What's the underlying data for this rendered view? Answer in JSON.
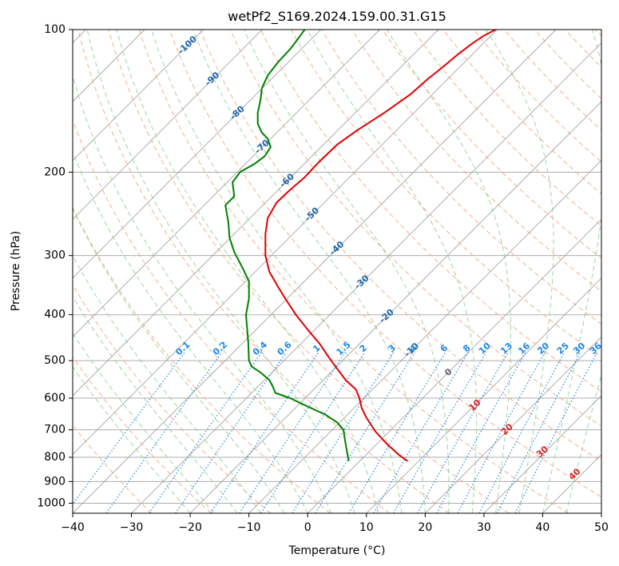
{
  "chart_data": {
    "type": "line",
    "title": "wetPf2_S169.2024.159.00.31.G15",
    "xlabel": "Temperature (°C)",
    "ylabel": "Pressure (hPa)",
    "xlim": [
      -40,
      50
    ],
    "ylim": [
      1050,
      100
    ],
    "y_scale": "log",
    "grid": true,
    "x_ticks": [
      -40,
      -30,
      -20,
      -10,
      0,
      10,
      20,
      30,
      40,
      50
    ],
    "x_tick_labels": [
      "−40",
      "−30",
      "−20",
      "−10",
      "0",
      "10",
      "20",
      "30",
      "40",
      "50"
    ],
    "y_ticks": [
      100,
      200,
      300,
      400,
      500,
      600,
      700,
      800,
      900,
      1000
    ],
    "y_tick_labels": [
      "100",
      "200",
      "300",
      "400",
      "500",
      "600",
      "700",
      "800",
      "900",
      "1000"
    ],
    "colors": {
      "temperature": "#e00000",
      "dewpoint": "#008000",
      "isotherm": "#999999",
      "dry_adiabat": "#f4a582",
      "moist_adiabat": "#8ccf8c",
      "mixing_ratio": "#1e88e5",
      "isotherm_label": "#2166ac",
      "moist_label": "#d62728",
      "zero_label": "#666666"
    },
    "series": [
      {
        "name": "",
        "role": "temperature",
        "points": [
          [
            17,
            815
          ],
          [
            15.5,
            790
          ],
          [
            13.5,
            750
          ],
          [
            11.5,
            705
          ],
          [
            10,
            660
          ],
          [
            9.2,
            630
          ],
          [
            8.8,
            600
          ],
          [
            8.2,
            575
          ],
          [
            6.5,
            550
          ],
          [
            5,
            520
          ],
          [
            3.5,
            490
          ],
          [
            2,
            460
          ],
          [
            0,
            430
          ],
          [
            -2,
            400
          ],
          [
            -3.5,
            375
          ],
          [
            -5,
            350
          ],
          [
            -6.5,
            325
          ],
          [
            -7.2,
            300
          ],
          [
            -7.2,
            270
          ],
          [
            -6.8,
            250
          ],
          [
            -5.3,
            232
          ],
          [
            -3,
            218
          ],
          [
            -0.5,
            205
          ],
          [
            2,
            190
          ],
          [
            5,
            175
          ],
          [
            8.5,
            163
          ],
          [
            13,
            150
          ],
          [
            17.5,
            137
          ],
          [
            20.5,
            127
          ],
          [
            23,
            120
          ],
          [
            25.5,
            113
          ],
          [
            28,
            107
          ],
          [
            30,
            103
          ],
          [
            32,
            100
          ]
        ]
      },
      {
        "name": "",
        "role": "dewpoint",
        "points": [
          [
            7,
            815
          ],
          [
            6.7,
            780
          ],
          [
            6.3,
            730
          ],
          [
            6.1,
            700
          ],
          [
            5,
            675
          ],
          [
            3,
            650
          ],
          [
            0,
            625
          ],
          [
            -3,
            600
          ],
          [
            -5.5,
            585
          ],
          [
            -6,
            565
          ],
          [
            -6.5,
            550
          ],
          [
            -8,
            530
          ],
          [
            -9.5,
            515
          ],
          [
            -10,
            500
          ],
          [
            -10.1,
            460
          ],
          [
            -10.3,
            430
          ],
          [
            -10.5,
            400
          ],
          [
            -10,
            370
          ],
          [
            -10,
            340
          ],
          [
            -11,
            320
          ],
          [
            -12.5,
            295
          ],
          [
            -13.3,
            275
          ],
          [
            -13.5,
            255
          ],
          [
            -14,
            235
          ],
          [
            -12.5,
            225
          ],
          [
            -12.8,
            210
          ],
          [
            -11.5,
            200
          ],
          [
            -9,
            192
          ],
          [
            -7.3,
            185
          ],
          [
            -6.3,
            177
          ],
          [
            -6.8,
            170
          ],
          [
            -7.8,
            165
          ],
          [
            -8.5,
            158
          ],
          [
            -8.5,
            150
          ],
          [
            -8,
            140
          ],
          [
            -7.8,
            133
          ],
          [
            -6.8,
            125
          ],
          [
            -5,
            117
          ],
          [
            -3,
            110
          ],
          [
            -1.5,
            104
          ],
          [
            -0.5,
            100
          ]
        ]
      }
    ],
    "isotherm_labels": [
      "-100",
      "-90",
      "-80",
      "-70",
      "-60",
      "-50",
      "-40",
      "-30",
      "-20",
      "-10"
    ],
    "mixing_ratio_labels": [
      "0.1",
      "0.2",
      "0.4",
      "0.6",
      "1",
      "1.5",
      "2",
      "3",
      "4",
      "6",
      "8",
      "10",
      "13",
      "16",
      "20",
      "25",
      "30",
      "36"
    ],
    "moist_adiabat_labels": [
      "0",
      "10",
      "20",
      "30",
      "40"
    ]
  }
}
